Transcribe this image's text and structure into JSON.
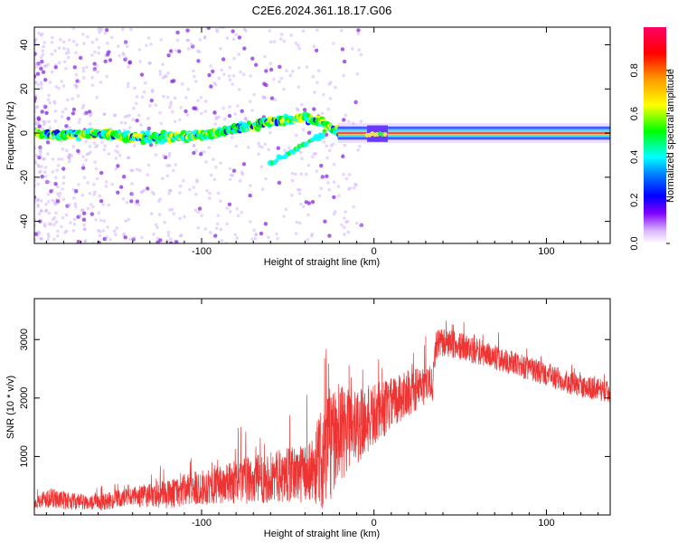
{
  "chart_data": [
    {
      "type": "heatmap",
      "title": "C2E6.2024.361.18.17.G06",
      "xlabel": "Height of straight line (km)",
      "ylabel": "Frequency (Hz)",
      "xlim": [
        -197,
        137
      ],
      "ylim": [
        -50,
        48
      ],
      "xticks": [
        -100,
        0,
        100
      ],
      "yticks": [
        -40,
        -20,
        0,
        20,
        40
      ],
      "x_tick_labels": [
        "-100",
        "0",
        "100"
      ],
      "y_tick_labels": [
        "-40",
        "-20",
        "0",
        "20",
        "40"
      ],
      "colorbar": {
        "label": "Normalized spectral amplitude",
        "range": [
          0,
          1
        ],
        "ticks": [
          "0.0",
          "0.2",
          "0.4",
          "0.6",
          "0.8"
        ],
        "colors": [
          "#ffffff",
          "#cc99ff",
          "#8000ff",
          "#0000ff",
          "#00ffff",
          "#00ff00",
          "#ffff00",
          "#ff9900",
          "#ff0000",
          "#ff0066"
        ]
      },
      "ridge_frequency_hz": {
        "x": [
          -197,
          -180,
          -160,
          -140,
          -120,
          -100,
          -80,
          -60,
          -50,
          -45,
          -40,
          -35,
          -30,
          -25,
          -20,
          -15,
          -10,
          -5,
          0,
          5,
          10,
          20,
          40,
          60,
          80,
          100,
          120,
          137
        ],
        "y": [
          0,
          -1,
          0,
          -2,
          -2,
          -1,
          2,
          5,
          6,
          7,
          7,
          6,
          5,
          2,
          0,
          0,
          0,
          0,
          -1,
          0,
          0,
          0,
          0,
          0,
          0,
          0,
          0,
          0
        ]
      },
      "grid": false
    },
    {
      "type": "line",
      "xlabel": "Height of straight line (km)",
      "ylabel": "SNR (10 * v/v)",
      "xlim": [
        -197,
        137
      ],
      "ylim": [
        0,
        3700
      ],
      "xticks": [
        -100,
        0,
        100
      ],
      "yticks": [
        1000,
        2000,
        3000
      ],
      "x_tick_labels": [
        "-100",
        "0",
        "100"
      ],
      "y_tick_labels": [
        "1000",
        "2000",
        "3000"
      ],
      "color": "#ee3333",
      "series": [
        {
          "x": [
            -197,
            -190,
            -180,
            -170,
            -160,
            -150,
            -140,
            -130,
            -120,
            -110,
            -100,
            -90,
            -80,
            -70,
            -60,
            -50,
            -40,
            -35,
            -30,
            -25,
            -20,
            -15,
            -10,
            -5,
            0,
            5,
            10,
            15,
            20,
            25,
            30,
            34,
            36,
            40,
            50,
            60,
            70,
            80,
            90,
            100,
            110,
            120,
            130,
            137
          ],
          "y": [
            200,
            300,
            250,
            220,
            200,
            260,
            300,
            330,
            350,
            420,
            470,
            500,
            560,
            600,
            650,
            680,
            720,
            800,
            1000,
            1250,
            1400,
            1450,
            1500,
            1600,
            1700,
            1800,
            1900,
            2000,
            2100,
            2150,
            2200,
            2250,
            2900,
            2950,
            2880,
            2800,
            2700,
            2600,
            2500,
            2400,
            2300,
            2200,
            2150,
            2100
          ],
          "noise": [
            80,
            180,
            150,
            140,
            130,
            160,
            180,
            210,
            240,
            280,
            300,
            320,
            380,
            420,
            440,
            460,
            520,
            600,
            900,
            1000,
            900,
            750,
            650,
            600,
            550,
            500,
            450,
            420,
            400,
            380,
            350,
            330,
            250,
            250,
            240,
            230,
            220,
            210,
            210,
            200,
            200,
            200,
            190,
            190
          ]
        }
      ],
      "grid": false
    }
  ]
}
